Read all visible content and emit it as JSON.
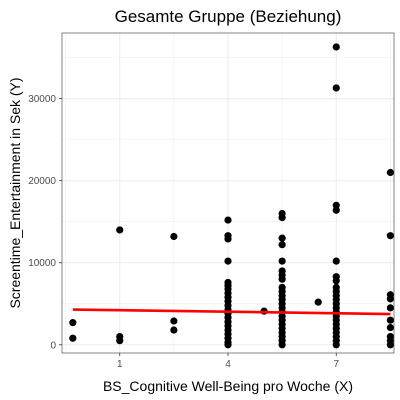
{
  "chart_data": {
    "type": "scatter",
    "title": "Gesamte Gruppe (Beziehung)",
    "xlabel": "BS_Cognitive Well-Being pro Woche (X)",
    "ylabel": "Screentime_Entertainment in Sek (Y)",
    "x_ticks": [
      1,
      4,
      7
    ],
    "y_ticks": [
      0,
      10000,
      20000,
      30000
    ],
    "x_tick_labels": [
      "1",
      "4",
      "7"
    ],
    "y_tick_labels": [
      "0",
      "10000",
      "20000",
      "30000"
    ],
    "xlim": [
      -0.6,
      8.6
    ],
    "ylim": [
      -1000,
      38000
    ],
    "grid": true,
    "colors": {
      "points": "#000000",
      "fit_line": "#ff0000",
      "grid": "#ebebeb",
      "panel_border": "#333333"
    },
    "points": [
      {
        "x": -0.3,
        "y": 2700
      },
      {
        "x": -0.3,
        "y": 800
      },
      {
        "x": 1.0,
        "y": 14000
      },
      {
        "x": 1.0,
        "y": 1000
      },
      {
        "x": 1.0,
        "y": 500
      },
      {
        "x": 2.5,
        "y": 13200
      },
      {
        "x": 2.5,
        "y": 2900
      },
      {
        "x": 2.5,
        "y": 1800
      },
      {
        "x": 4.0,
        "y": 15200
      },
      {
        "x": 4.0,
        "y": 13300
      },
      {
        "x": 4.0,
        "y": 12900
      },
      {
        "x": 4.0,
        "y": 10200
      },
      {
        "x": 4.0,
        "y": 7600
      },
      {
        "x": 4.0,
        "y": 7200
      },
      {
        "x": 4.0,
        "y": 6800
      },
      {
        "x": 4.0,
        "y": 6300
      },
      {
        "x": 4.0,
        "y": 5800
      },
      {
        "x": 4.0,
        "y": 5300
      },
      {
        "x": 4.0,
        "y": 4800
      },
      {
        "x": 4.0,
        "y": 4300
      },
      {
        "x": 4.0,
        "y": 3800
      },
      {
        "x": 4.0,
        "y": 3300
      },
      {
        "x": 4.0,
        "y": 2800
      },
      {
        "x": 4.0,
        "y": 2300
      },
      {
        "x": 4.0,
        "y": 1800
      },
      {
        "x": 4.0,
        "y": 1300
      },
      {
        "x": 4.0,
        "y": 800
      },
      {
        "x": 4.0,
        "y": 300
      },
      {
        "x": 4.0,
        "y": 0
      },
      {
        "x": 5.0,
        "y": 4100
      },
      {
        "x": 5.5,
        "y": 16000
      },
      {
        "x": 5.5,
        "y": 15500
      },
      {
        "x": 5.5,
        "y": 13000
      },
      {
        "x": 5.5,
        "y": 12200
      },
      {
        "x": 5.5,
        "y": 10200
      },
      {
        "x": 5.5,
        "y": 9000
      },
      {
        "x": 5.5,
        "y": 8500
      },
      {
        "x": 5.5,
        "y": 8000
      },
      {
        "x": 5.5,
        "y": 7000
      },
      {
        "x": 5.5,
        "y": 6500
      },
      {
        "x": 5.5,
        "y": 6000
      },
      {
        "x": 5.5,
        "y": 5500
      },
      {
        "x": 5.5,
        "y": 5000
      },
      {
        "x": 5.5,
        "y": 4500
      },
      {
        "x": 5.5,
        "y": 4000
      },
      {
        "x": 5.5,
        "y": 3500
      },
      {
        "x": 5.5,
        "y": 3000
      },
      {
        "x": 5.5,
        "y": 2500
      },
      {
        "x": 5.5,
        "y": 2000
      },
      {
        "x": 5.5,
        "y": 1500
      },
      {
        "x": 5.5,
        "y": 1000
      },
      {
        "x": 5.5,
        "y": 500
      },
      {
        "x": 5.5,
        "y": 0
      },
      {
        "x": 6.5,
        "y": 5200
      },
      {
        "x": 7.0,
        "y": 36300
      },
      {
        "x": 7.0,
        "y": 31300
      },
      {
        "x": 7.0,
        "y": 17000
      },
      {
        "x": 7.0,
        "y": 16400
      },
      {
        "x": 7.0,
        "y": 10200
      },
      {
        "x": 7.0,
        "y": 8300
      },
      {
        "x": 7.0,
        "y": 7800
      },
      {
        "x": 7.0,
        "y": 7000
      },
      {
        "x": 7.0,
        "y": 6500
      },
      {
        "x": 7.0,
        "y": 6000
      },
      {
        "x": 7.0,
        "y": 5500
      },
      {
        "x": 7.0,
        "y": 5000
      },
      {
        "x": 7.0,
        "y": 4500
      },
      {
        "x": 7.0,
        "y": 4000
      },
      {
        "x": 7.0,
        "y": 3500
      },
      {
        "x": 7.0,
        "y": 3000
      },
      {
        "x": 7.0,
        "y": 2500
      },
      {
        "x": 7.0,
        "y": 2000
      },
      {
        "x": 7.0,
        "y": 1500
      },
      {
        "x": 7.0,
        "y": 1000
      },
      {
        "x": 7.0,
        "y": 500
      },
      {
        "x": 7.0,
        "y": 0
      },
      {
        "x": 8.5,
        "y": 21000
      },
      {
        "x": 8.5,
        "y": 13300
      },
      {
        "x": 8.5,
        "y": 6100
      },
      {
        "x": 8.5,
        "y": 5600
      },
      {
        "x": 8.5,
        "y": 4500
      },
      {
        "x": 8.5,
        "y": 3000
      },
      {
        "x": 8.5,
        "y": 2100
      },
      {
        "x": 8.5,
        "y": 1000
      },
      {
        "x": 8.5,
        "y": 500
      },
      {
        "x": 8.5,
        "y": 0
      }
    ],
    "fit_line": {
      "x": [
        -0.3,
        8.5
      ],
      "y": [
        4300,
        3750
      ]
    }
  }
}
